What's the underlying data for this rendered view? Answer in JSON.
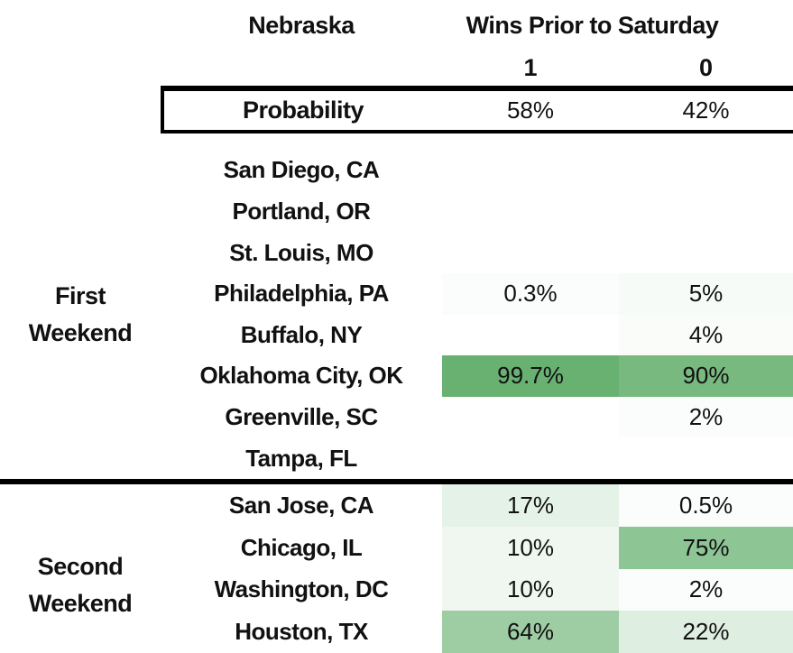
{
  "chart_data": {
    "type": "heatmap",
    "title": "Nebraska",
    "column_group_label": "Wins Prior to Saturday",
    "columns": [
      "1",
      "0"
    ],
    "probability_label": "Probability",
    "probability_pct": [
      58,
      42
    ],
    "probability_display": [
      "58%",
      "42%"
    ],
    "sections": [
      {
        "label_lines": [
          "First",
          "Weekend"
        ],
        "rows": [
          {
            "city": "San Diego, CA",
            "values_pct": [
              null,
              null
            ],
            "display": [
              "",
              ""
            ]
          },
          {
            "city": "Portland, OR",
            "values_pct": [
              null,
              null
            ],
            "display": [
              "",
              ""
            ]
          },
          {
            "city": "St. Louis, MO",
            "values_pct": [
              null,
              null
            ],
            "display": [
              "",
              ""
            ]
          },
          {
            "city": "Philadelphia, PA",
            "values_pct": [
              0.3,
              5
            ],
            "display": [
              "0.3%",
              "5%"
            ]
          },
          {
            "city": "Buffalo, NY",
            "values_pct": [
              null,
              4
            ],
            "display": [
              "",
              "4%"
            ]
          },
          {
            "city": "Oklahoma City, OK",
            "values_pct": [
              99.7,
              90
            ],
            "display": [
              "99.7%",
              "90%"
            ]
          },
          {
            "city": "Greenville, SC",
            "values_pct": [
              null,
              2
            ],
            "display": [
              "",
              "2%"
            ]
          },
          {
            "city": "Tampa, FL",
            "values_pct": [
              null,
              null
            ],
            "display": [
              "",
              ""
            ]
          }
        ]
      },
      {
        "label_lines": [
          "Second",
          "Weekend"
        ],
        "rows": [
          {
            "city": "San Jose, CA",
            "values_pct": [
              17,
              0.5
            ],
            "display": [
              "17%",
              "0.5%"
            ]
          },
          {
            "city": "Chicago, IL",
            "values_pct": [
              10,
              75
            ],
            "display": [
              "10%",
              "75%"
            ]
          },
          {
            "city": "Washington, DC",
            "values_pct": [
              10,
              2
            ],
            "display": [
              "10%",
              "2%"
            ]
          },
          {
            "city": "Houston, TX",
            "values_pct": [
              64,
              22
            ],
            "display": [
              "64%",
              "22%"
            ]
          }
        ]
      }
    ],
    "heat_scale": {
      "min_color": "#ffffff",
      "max_color": "#68b171",
      "domain": [
        0,
        100
      ],
      "min_visible_tint_pct": 3
    },
    "layout": {
      "border_color": "#000000",
      "text_color": "#111111",
      "background": "#ffffff"
    }
  }
}
